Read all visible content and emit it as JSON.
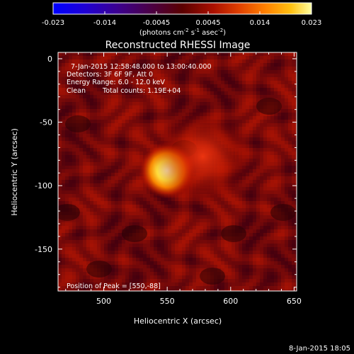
{
  "chart_data": {
    "type": "heatmap",
    "title": "Reconstructed RHESSI Image",
    "xlabel": "Heliocentric X (arcsec)",
    "ylabel": "Heliocentric Y (arcsec)",
    "xlim": [
      464,
      652
    ],
    "ylim": [
      -183,
      5
    ],
    "x_ticks": [
      500,
      550,
      600,
      650
    ],
    "y_ticks": [
      0,
      -50,
      -100,
      -150
    ],
    "colorbar": {
      "ticks": [
        "-0.023",
        "-0.014",
        "-0.0045",
        "0.0045",
        "0.014",
        "0.023"
      ],
      "unit_label": "(photons cm",
      "unit_exp1": "-2",
      "unit_mid": " s",
      "unit_exp2": "-1",
      "unit_asec": " asec",
      "unit_exp3": "-2",
      "unit_end": ")",
      "range": [
        -0.023,
        0.023
      ]
    },
    "sources": [
      {
        "x": 550,
        "y": -88,
        "intensity": 0.023,
        "sigma": 7
      },
      {
        "x": 578,
        "y": -77,
        "intensity": 0.0105,
        "sigma": 12
      }
    ],
    "peak": {
      "x": 550,
      "y": -88
    }
  },
  "annotations": {
    "time_range": "7-Jan-2015 12:58:48.000 to 13:00:40.000",
    "detectors": "Detectors: 3F 6F 9F, Att 0",
    "energy": "Energy Range: 6.0 - 12.0 keV",
    "method": "Clean",
    "counts": "Total counts: 1.19E+04",
    "peak_label": "Position of Peak = [550,-88]"
  },
  "footer": {
    "date": "8-Jan-2015 18:05"
  }
}
